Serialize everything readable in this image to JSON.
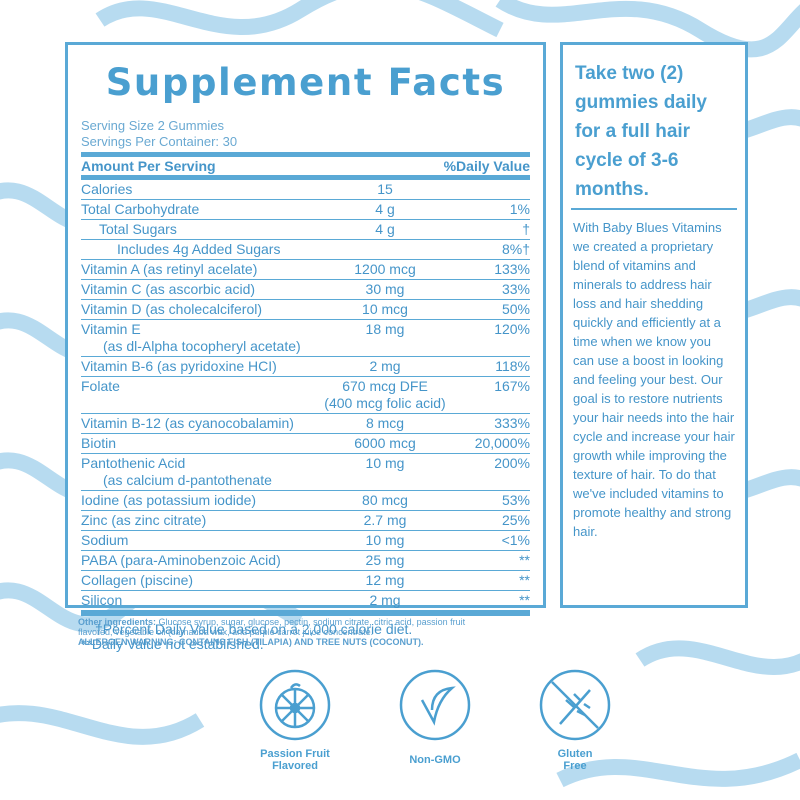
{
  "panel": {
    "title": "Supplement Facts",
    "serving_size": "Serving Size 2 Gummies",
    "servings_per_container": "Servings Per Container: 30",
    "header": {
      "amount": "Amount Per Serving",
      "dv": "%Daily Value"
    },
    "rows": [
      {
        "name": "Calories",
        "amount": "15"
      },
      {
        "name": "Total Carbohydrate",
        "amount": "4 g",
        "dv": "1%",
        "children": [
          {
            "name": "Total Sugars",
            "amount": "4 g",
            "dv": "†",
            "children": [
              {
                "name": "Includes 4g Added Sugars",
                "dv": "8%†"
              }
            ]
          }
        ]
      },
      {
        "name": "Vitamin A (as retinyl acelate)",
        "amount": "1200 mcg",
        "dv": "133%"
      },
      {
        "name": "Vitamin C (as ascorbic acid)",
        "amount": "30 mg",
        "dv": "33%"
      },
      {
        "name": "Vitamin D (as cholecalciferol)",
        "amount": "10 mcg",
        "dv": "50%"
      },
      {
        "name": "Vitamin E",
        "detail": "(as dl-Alpha tocopheryl acetate)",
        "amount": "18 mg",
        "dv": "120%"
      },
      {
        "name": "Vitamin B-6 (as pyridoxine HCI)",
        "amount": "2 mg",
        "dv": "118%"
      },
      {
        "name": "Folate",
        "amount": "670 mcg DFE",
        "amount_detail": "(400 mcg folic acid)",
        "dv": "167%"
      },
      {
        "name": "Vitamin B-12 (as cyanocobalamin)",
        "amount": "8 mcg",
        "dv": "333%"
      },
      {
        "name": "Biotin",
        "amount": "6000 mcg",
        "dv": "20,000%"
      },
      {
        "name": "Pantothenic Acid",
        "detail": "(as calcium d-pantothenate",
        "amount": "10 mg",
        "dv": "200%"
      },
      {
        "name": "Iodine (as potassium iodide)",
        "amount": "80 mcg",
        "dv": "53%"
      },
      {
        "name": "Zinc (as zinc citrate)",
        "amount": "2.7 mg",
        "dv": "25%"
      },
      {
        "name": "Sodium",
        "amount": "10 mg",
        "dv": "<1%"
      },
      {
        "name": "PABA (para-Aminobenzoic Acid)",
        "amount": "25 mg",
        "dv": "**"
      },
      {
        "name": "Collagen (piscine)",
        "amount": "12 mg",
        "dv": "**"
      },
      {
        "name": "Silicon",
        "amount": "2 mg",
        "dv": "**"
      }
    ],
    "footnotes": [
      "†Percent Daily Value based on a 2,000 calorie diet.",
      "**Daily Value not established."
    ]
  },
  "ingredients": {
    "label": "Other ingredients:",
    "text": "Glucose syrup, sugar, glucose, pectin, sodium citrate, citric acid, passion fruit flavored, vegetable oil (carnauba wax, and purple carrot juice concentrate.",
    "allergen": "ALLERGEN WARNING: CONTAINS FISH (TILAPIA) AND TREE NUTS (COCONUT)."
  },
  "side": {
    "headline": "Take two (2) gummies daily for a full hair cycle of 3-6 months.",
    "body": "With Baby Blues Vitamins we created a proprietary blend of vitamins and minerals to address hair loss and hair shedding quickly and efficiently at a time when we know you can use a boost in looking and feeling your best. Our goal is to restore nutrients your hair needs into the hair cycle and increase your hair growth while improving the texture of hair. To do that we've included vitamins to promote healthy and strong hair."
  },
  "badges": [
    {
      "label": "Passion Fruit Flavored"
    },
    {
      "label": "Non-GMO"
    },
    {
      "label": "Gluten Free"
    }
  ]
}
